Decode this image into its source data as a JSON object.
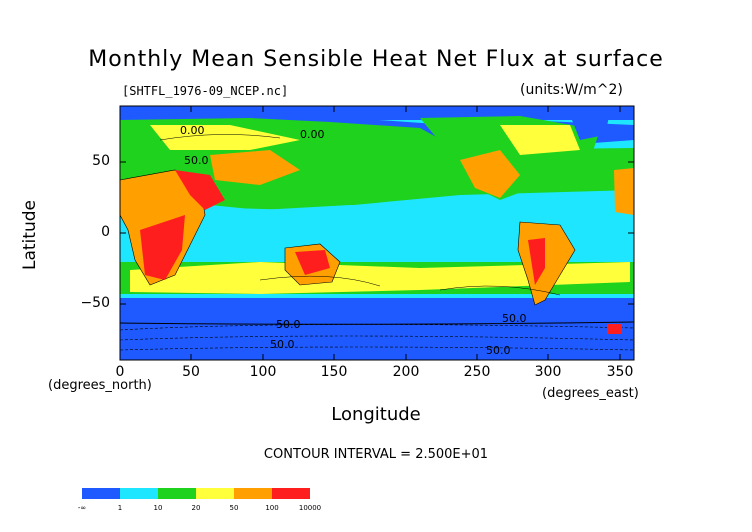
{
  "title": "Monthly Mean Sensible Heat Net Flux at surface",
  "file_label": "[SHTFL_1976-09_NCEP.nc]",
  "units_label": "(units:W/m^2)",
  "y_axis": {
    "label": "Latitude",
    "unit_label": "(degrees_north)",
    "ticks": [
      "50",
      "0",
      "−50"
    ],
    "tick_values": [
      50,
      0,
      -50
    ],
    "range": [
      -90,
      90
    ]
  },
  "x_axis": {
    "label": "Longitude",
    "unit_label": "(degrees_east)",
    "ticks": [
      "0",
      "50",
      "100",
      "150",
      "200",
      "250",
      "300",
      "350"
    ],
    "tick_values": [
      0,
      50,
      100,
      150,
      200,
      250,
      300,
      350
    ],
    "range": [
      0,
      360
    ]
  },
  "contour_interval": "CONTOUR INTERVAL = 2.500E+01",
  "contour_labels": [
    "0.00",
    "0.00",
    "50.0",
    "50.0",
    "50.0",
    "50.0",
    "50.0"
  ],
  "colorbar": {
    "colors": [
      "#1e5aff",
      "#1ee6ff",
      "#1ed21e",
      "#ffff3c",
      "#ffa000",
      "#ff1e1e"
    ],
    "labels": [
      "-∞",
      "1",
      "10",
      "20",
      "50",
      "100",
      "10000"
    ]
  },
  "colors": {
    "ocean_low": "#1e5aff",
    "ocean_mid": "#1ee6ff",
    "land_high": "#ff1e1e"
  }
}
